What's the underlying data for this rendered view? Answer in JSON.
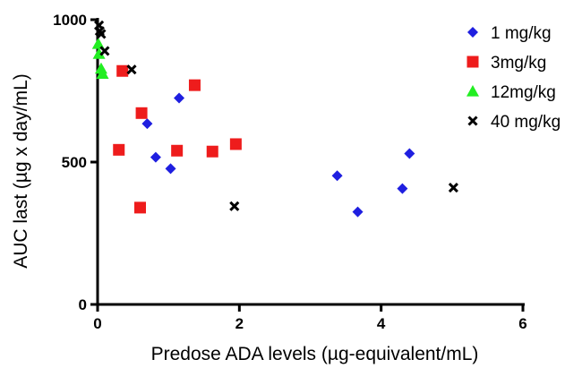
{
  "chart_data": {
    "type": "scatter",
    "xlabel": "Predose ADA levels (µg-equivalent/mL)",
    "ylabel": "AUC last (µg x day/mL)",
    "xlim": [
      0,
      6
    ],
    "ylim": [
      0,
      1000
    ],
    "x_ticks": [
      0,
      2,
      4,
      6
    ],
    "x_tick_labels": [
      "0",
      "2",
      "4",
      "6"
    ],
    "y_ticks": [
      0,
      500,
      1000
    ],
    "y_tick_labels": [
      "0",
      "500",
      "1000"
    ],
    "grid": false,
    "legend_position": "top-right",
    "series": [
      {
        "name": "1 mg/kg",
        "marker": "diamond",
        "color": "#1f1fe0",
        "points": [
          [
            0.7,
            635
          ],
          [
            0.82,
            517
          ],
          [
            1.03,
            477
          ],
          [
            1.15,
            725
          ],
          [
            3.38,
            452
          ],
          [
            3.67,
            325
          ],
          [
            4.3,
            407
          ],
          [
            4.4,
            530
          ]
        ]
      },
      {
        "name": "3mg/kg",
        "marker": "square",
        "color": "#ee1c1c",
        "points": [
          [
            0.3,
            543
          ],
          [
            0.35,
            820
          ],
          [
            0.6,
            340
          ],
          [
            0.62,
            672
          ],
          [
            1.12,
            540
          ],
          [
            1.37,
            770
          ],
          [
            1.62,
            537
          ],
          [
            1.95,
            563
          ]
        ]
      },
      {
        "name": "12mg/kg",
        "marker": "triangle",
        "color": "#22ee22",
        "points": [
          [
            0.01,
            915
          ],
          [
            0.02,
            880
          ],
          [
            0.05,
            828
          ],
          [
            0.07,
            810
          ]
        ]
      },
      {
        "name": "40 mg/kg",
        "marker": "cross",
        "color": "#000000",
        "points": [
          [
            0.02,
            980
          ],
          [
            0.03,
            960
          ],
          [
            0.05,
            950
          ],
          [
            0.1,
            890
          ],
          [
            0.48,
            825
          ],
          [
            1.93,
            345
          ],
          [
            5.02,
            410
          ]
        ]
      }
    ]
  }
}
